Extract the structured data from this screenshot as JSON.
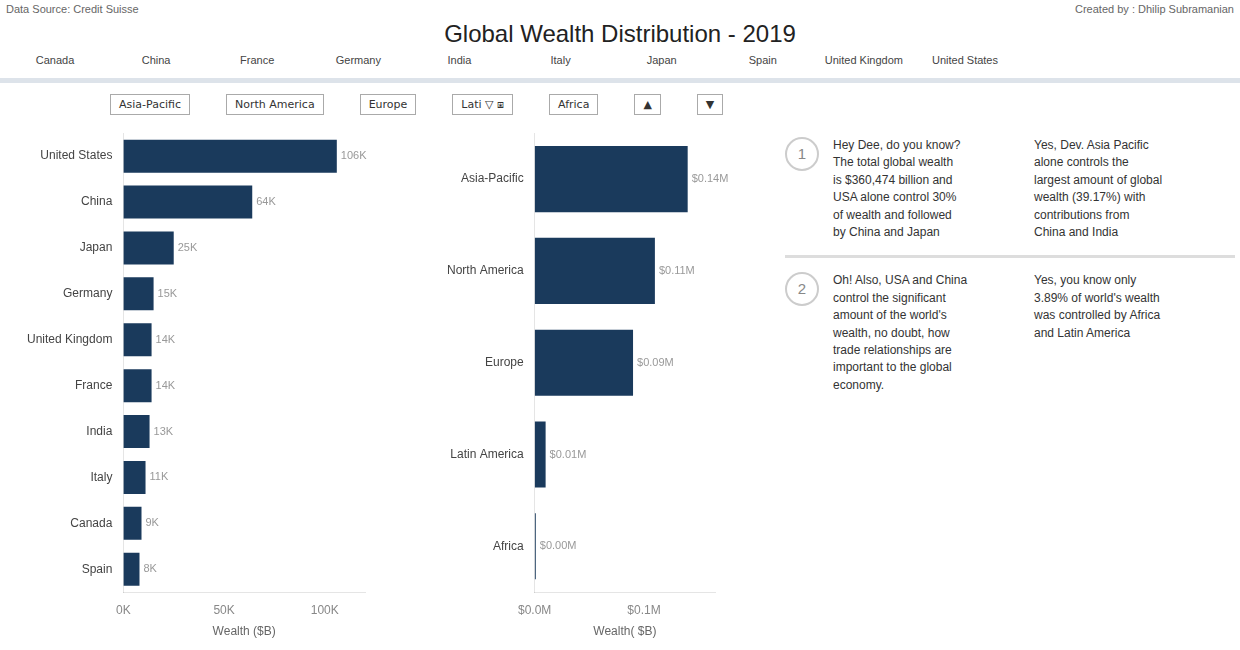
{
  "title": "Global Wealth Distribution - 2019",
  "annotations": {
    "header": [
      "Data Source: Credit Suisse",
      "Created by : Dhilip Subramanian"
    ],
    "flags": [
      "Canada",
      "China",
      "France",
      "Germany",
      "India",
      "Italy",
      "Japan",
      "Spain",
      "United Kingdom",
      "United States"
    ],
    "tabs": [
      "Asia-Pacific",
      "North America",
      "Europe",
      "Lati ▽ ⧆",
      "Africa",
      "▲",
      "▼"
    ],
    "panel": [
      {
        "number": "1",
        "texts": [
          "Hey Dee, do you know?\nThe total global wealth\nis $360,474 billion and\nUSA alone control 30%\nof wealth and followed\nby China and Japan",
          "Yes, Dev. Asia Pacific\nalone controls the\nlargest amount of global\nwealth (39.17%) with\ncontributions from\nChina and India"
        ]
      },
      {
        "number": "2",
        "texts": [
          "Oh! Also, USA and China\ncontrol the significant\namount of the world's\nwealth, no doubt, how\ntrade relationships are\nimportant to the global\neconomy.",
          "Yes, you know only\n3.89% of world's wealth\nwas controlled by Africa\nand Latin America"
        ]
      }
    ]
  },
  "chart_data": [
    {
      "type": "bar",
      "orientation": "horizontal",
      "x_label": "Wealth ($B)",
      "categories": [
        "United States",
        "China",
        "Japan",
        "Germany",
        "United Kingdom",
        "France",
        "India",
        "Italy",
        "Canada",
        "Spain"
      ],
      "values": [
        106,
        64,
        25,
        15,
        14,
        14,
        13,
        11,
        9,
        8
      ],
      "value_labels": [
        "106K",
        "64K",
        "25K",
        "15K",
        "14K",
        "14K",
        "13K",
        "11K",
        "9K",
        "8K"
      ],
      "color": "#1a3a5c",
      "xlim": [
        0,
        120
      ],
      "xticks": [
        {
          "value": 0,
          "label": "0K"
        },
        {
          "value": 50,
          "label": "50K"
        },
        {
          "value": 100,
          "label": "100K"
        }
      ],
      "data_labels": true,
      "grid": false
    },
    {
      "type": "bar",
      "orientation": "horizontal",
      "x_label": "Wealth( $B)",
      "categories": [
        "Asia-Pacific",
        "North America",
        "Europe",
        "Latin America",
        "Africa"
      ],
      "values": [
        0.14,
        0.11,
        0.09,
        0.01,
        0.001
      ],
      "value_labels": [
        "$0.14M",
        "$0.11M",
        "$0.09M",
        "$0.01M",
        "$0.00M"
      ],
      "color": "#1a3a5c",
      "xlim": [
        0,
        0.165
      ],
      "xticks": [
        {
          "value": 0.0,
          "label": "$0.0M"
        },
        {
          "value": 0.1,
          "label": "$0.1M"
        }
      ],
      "data_labels": true,
      "grid": false
    }
  ]
}
